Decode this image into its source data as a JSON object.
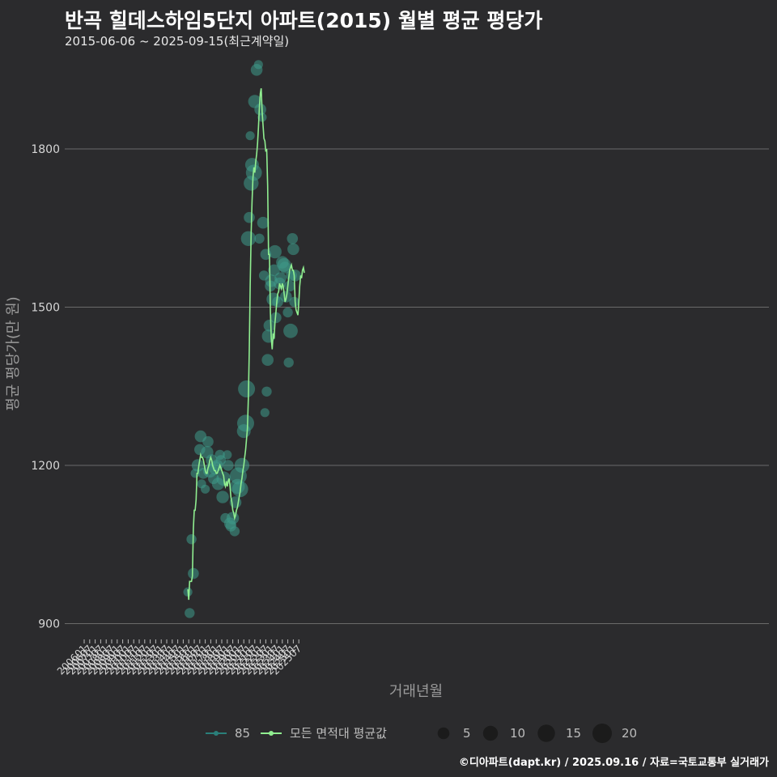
{
  "title": "반곡 힐데스하임5단지 아파트(2015) 월별 평균 평당가",
  "subtitle": "2015-06-06 ~ 2025-09-15(최근계약일)",
  "caption": "©디아파트(dapt.kr) / 2025.09.16 / 자료=국토교통부 실거래가",
  "colors": {
    "background": "#2b2b2d",
    "grid": "#6a6a6a",
    "line": "#90ee90",
    "bubble": "#3e9a8a",
    "series85": "#2a7f7a",
    "text": "#dddddd"
  },
  "chart_data": {
    "type": "line",
    "xlabel": "거래년월",
    "ylabel": "평균 평당가(만 원)",
    "ylim": [
      870,
      1975
    ],
    "yticks": [
      900,
      1200,
      1500,
      1800
    ],
    "x_tick_labels": [
      "200601",
      "200607",
      "200701",
      "200707",
      "200801",
      "200807",
      "200901",
      "200907",
      "201001",
      "201007",
      "201101",
      "201107",
      "201201",
      "201207",
      "201301",
      "201307",
      "201401",
      "201407",
      "201501",
      "201507",
      "201601",
      "201607",
      "201701",
      "201707",
      "201801",
      "201807",
      "201901",
      "201907",
      "202001",
      "202007",
      "202101",
      "202107",
      "202201",
      "202207",
      "202301",
      "202307",
      "202401",
      "202407",
      "202501",
      "202507"
    ],
    "line_series": {
      "name": "모든 면적대 평균값",
      "start": "2015-06",
      "values": [
        965,
        945,
        980,
        980,
        980,
        990,
        1080,
        1115,
        1115,
        1135,
        1185,
        1185,
        1200,
        1210,
        1220,
        1215,
        1215,
        1210,
        1200,
        1190,
        1185,
        1185,
        1195,
        1200,
        1210,
        1215,
        1210,
        1200,
        1195,
        1190,
        1190,
        1185,
        1185,
        1190,
        1195,
        1200,
        1195,
        1190,
        1185,
        1180,
        1165,
        1160,
        1170,
        1160,
        1170,
        1175,
        1160,
        1140,
        1130,
        1115,
        1110,
        1100,
        1105,
        1115,
        1120,
        1130,
        1140,
        1150,
        1165,
        1175,
        1190,
        1200,
        1215,
        1230,
        1250,
        1270,
        1330,
        1420,
        1540,
        1640,
        1700,
        1745,
        1765,
        1755,
        1775,
        1790,
        1810,
        1840,
        1880,
        1905,
        1915,
        1870,
        1845,
        1820,
        1815,
        1795,
        1800,
        1730,
        1600,
        1600,
        1490,
        1440,
        1420,
        1450,
        1440,
        1470,
        1490,
        1510,
        1525,
        1530,
        1545,
        1540,
        1535,
        1545,
        1540,
        1525,
        1510,
        1515,
        1525,
        1540,
        1555,
        1570,
        1575,
        1580,
        1570,
        1570,
        1560,
        1510,
        1495,
        1490,
        1485,
        1510,
        1540,
        1560,
        1555,
        1570,
        1575,
        1565
      ]
    },
    "bubble_series": {
      "name": "85",
      "points": [
        {
          "x": "2015-06",
          "y": 960,
          "n": 2
        },
        {
          "x": "2015-08",
          "y": 920,
          "n": 3
        },
        {
          "x": "2015-10",
          "y": 1060,
          "n": 3
        },
        {
          "x": "2015-12",
          "y": 995,
          "n": 4
        },
        {
          "x": "2016-02",
          "y": 1185,
          "n": 2
        },
        {
          "x": "2016-05",
          "y": 1200,
          "n": 6
        },
        {
          "x": "2016-07",
          "y": 1230,
          "n": 4
        },
        {
          "x": "2016-08",
          "y": 1255,
          "n": 5
        },
        {
          "x": "2016-09",
          "y": 1165,
          "n": 2
        },
        {
          "x": "2016-11",
          "y": 1185,
          "n": 4
        },
        {
          "x": "2017-01",
          "y": 1155,
          "n": 2
        },
        {
          "x": "2017-03",
          "y": 1225,
          "n": 6
        },
        {
          "x": "2017-04",
          "y": 1245,
          "n": 4
        },
        {
          "x": "2017-06",
          "y": 1190,
          "n": 8
        },
        {
          "x": "2017-08",
          "y": 1210,
          "n": 5
        },
        {
          "x": "2017-10",
          "y": 1175,
          "n": 4
        },
        {
          "x": "2017-12",
          "y": 1195,
          "n": 7
        },
        {
          "x": "2018-02",
          "y": 1200,
          "n": 5
        },
        {
          "x": "2018-03",
          "y": 1165,
          "n": 6
        },
        {
          "x": "2018-05",
          "y": 1220,
          "n": 3
        },
        {
          "x": "2018-06",
          "y": 1210,
          "n": 3
        },
        {
          "x": "2018-08",
          "y": 1140,
          "n": 6
        },
        {
          "x": "2018-09",
          "y": 1175,
          "n": 9
        },
        {
          "x": "2018-11",
          "y": 1100,
          "n": 3
        },
        {
          "x": "2019-01",
          "y": 1220,
          "n": 2
        },
        {
          "x": "2019-02",
          "y": 1200,
          "n": 4
        },
        {
          "x": "2019-04",
          "y": 1090,
          "n": 5
        },
        {
          "x": "2019-05",
          "y": 1085,
          "n": 4
        },
        {
          "x": "2019-07",
          "y": 1100,
          "n": 6
        },
        {
          "x": "2019-09",
          "y": 1075,
          "n": 3
        },
        {
          "x": "2019-10",
          "y": 1130,
          "n": 5
        },
        {
          "x": "2019-12",
          "y": 1160,
          "n": 10
        },
        {
          "x": "2020-01",
          "y": 1180,
          "n": 14
        },
        {
          "x": "2020-03",
          "y": 1155,
          "n": 12
        },
        {
          "x": "2020-05",
          "y": 1200,
          "n": 10
        },
        {
          "x": "2020-07",
          "y": 1265,
          "n": 8
        },
        {
          "x": "2020-09",
          "y": 1280,
          "n": 14
        },
        {
          "x": "2020-10",
          "y": 1345,
          "n": 14
        },
        {
          "x": "2020-12",
          "y": 1630,
          "n": 10
        },
        {
          "x": "2021-01",
          "y": 1670,
          "n": 4
        },
        {
          "x": "2021-02",
          "y": 1825,
          "n": 2
        },
        {
          "x": "2021-03",
          "y": 1735,
          "n": 10
        },
        {
          "x": "2021-04",
          "y": 1770,
          "n": 8
        },
        {
          "x": "2021-06",
          "y": 1755,
          "n": 12
        },
        {
          "x": "2021-07",
          "y": 1890,
          "n": 7
        },
        {
          "x": "2021-09",
          "y": 1950,
          "n": 5
        },
        {
          "x": "2021-11",
          "y": 1960,
          "n": 2
        },
        {
          "x": "2021-12",
          "y": 1630,
          "n": 3
        },
        {
          "x": "2022-01",
          "y": 1875,
          "n": 5
        },
        {
          "x": "2022-03",
          "y": 1860,
          "n": 2
        },
        {
          "x": "2022-04",
          "y": 1660,
          "n": 5
        },
        {
          "x": "2022-05",
          "y": 1560,
          "n": 3
        },
        {
          "x": "2022-06",
          "y": 1300,
          "n": 2
        },
        {
          "x": "2022-07",
          "y": 1600,
          "n": 4
        },
        {
          "x": "2022-08",
          "y": 1340,
          "n": 3
        },
        {
          "x": "2022-09",
          "y": 1400,
          "n": 5
        },
        {
          "x": "2022-10",
          "y": 1445,
          "n": 7
        },
        {
          "x": "2022-11",
          "y": 1465,
          "n": 5
        },
        {
          "x": "2022-12",
          "y": 1540,
          "n": 4
        },
        {
          "x": "2023-01",
          "y": 1550,
          "n": 6
        },
        {
          "x": "2023-03",
          "y": 1515,
          "n": 7
        },
        {
          "x": "2023-04",
          "y": 1570,
          "n": 5
        },
        {
          "x": "2023-05",
          "y": 1605,
          "n": 7
        },
        {
          "x": "2023-06",
          "y": 1480,
          "n": 4
        },
        {
          "x": "2023-08",
          "y": 1510,
          "n": 4
        },
        {
          "x": "2023-10",
          "y": 1545,
          "n": 5
        },
        {
          "x": "2023-11",
          "y": 1555,
          "n": 5
        },
        {
          "x": "2024-01",
          "y": 1585,
          "n": 6
        },
        {
          "x": "2024-03",
          "y": 1580,
          "n": 8
        },
        {
          "x": "2024-04",
          "y": 1575,
          "n": 5
        },
        {
          "x": "2024-05",
          "y": 1520,
          "n": 5
        },
        {
          "x": "2024-07",
          "y": 1490,
          "n": 3
        },
        {
          "x": "2024-08",
          "y": 1395,
          "n": 3
        },
        {
          "x": "2024-09",
          "y": 1540,
          "n": 4
        },
        {
          "x": "2024-10",
          "y": 1455,
          "n": 9
        },
        {
          "x": "2024-11",
          "y": 1560,
          "n": 4
        },
        {
          "x": "2024-12",
          "y": 1630,
          "n": 4
        },
        {
          "x": "2025-01",
          "y": 1610,
          "n": 5
        },
        {
          "x": "2025-02",
          "y": 1510,
          "n": 3
        },
        {
          "x": "2025-03",
          "y": 1560,
          "n": 5
        }
      ]
    },
    "legend": {
      "series_85_label": "85",
      "line_label": "모든 면적대 평균값",
      "size_labels": [
        "5",
        "10",
        "15",
        "20"
      ],
      "size_values": [
        5,
        10,
        15,
        20
      ],
      "placement": "bottom"
    }
  }
}
